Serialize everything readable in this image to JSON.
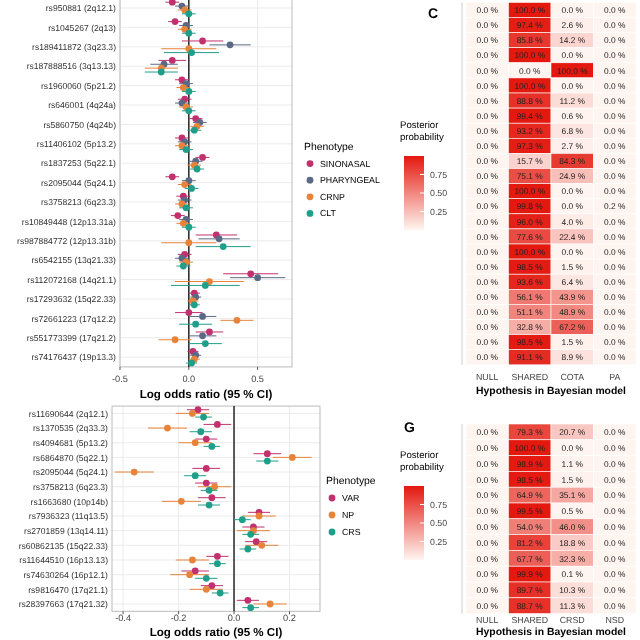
{
  "chart_data": [
    {
      "type": "scatter",
      "orientation": "horizontal",
      "xlabel": "Log odds ratio (95 % CI)",
      "legend": "right",
      "legend_title": "Phenotype",
      "marker": "circle",
      "grid": true,
      "categories": [
        "rs950881 (2q12.1)",
        "rs1045267 (2q13)",
        "rs189411872 (3q23.3)",
        "rs187888516 (3q13.13)",
        "rs1960060 (5p21.2)",
        "rs646001 (4q24a)",
        "rs5860750 (4q24b)",
        "rs11406102 (5p13.2)",
        "rs1837253 (5q22.1)",
        "rs2095044 (5q24.1)",
        "rs3758213 (6q23.3)",
        "rs10849448 (12p13.31a)",
        "rs987884772 (12p13.31b)",
        "rs6542155 (13q21.33)",
        "rs112072168 (14q21.1)",
        "rs17293632 (15q22.33)",
        "rs72661223 (17q12.2)",
        "rs551773399 (17q21.2)",
        "rs74176437 (19p13.3)"
      ],
      "xlim": [
        -0.5,
        0.75
      ],
      "xticks": [
        -0.5,
        {
          "value": 0,
          "label": "0.0"
        },
        0.5
      ],
      "ref_lines": [
        {
          "axis": "x",
          "value": 0
        }
      ],
      "series": [
        {
          "name": "SINONASAL",
          "color": "#c2306e",
          "values": [
            -0.12,
            -0.1,
            0.1,
            -0.12,
            -0.05,
            -0.03,
            0.05,
            -0.05,
            0.1,
            -0.12,
            -0.04,
            -0.08,
            0.2,
            -0.03,
            0.45,
            0.04,
            0.0,
            0.15,
            0.03
          ],
          "errors": [
            0.05,
            0.05,
            0.15,
            0.1,
            0.05,
            0.05,
            0.05,
            0.05,
            0.05,
            0.05,
            0.05,
            0.05,
            0.15,
            0.05,
            0.2,
            0.04,
            0.1,
            0.1,
            0.04
          ]
        },
        {
          "name": "PHARYNGEAL",
          "color": "#5a6a86",
          "values": [
            -0.05,
            -0.02,
            0.3,
            -0.18,
            -0.02,
            -0.05,
            0.08,
            -0.03,
            0.05,
            0.0,
            -0.03,
            -0.02,
            0.22,
            -0.05,
            0.5,
            0.05,
            0.1,
            0.1,
            0.05
          ],
          "errors": [
            0.05,
            0.05,
            0.15,
            0.1,
            0.05,
            0.05,
            0.05,
            0.05,
            0.05,
            0.05,
            0.05,
            0.05,
            0.15,
            0.05,
            0.2,
            0.04,
            0.1,
            0.1,
            0.04
          ]
        },
        {
          "name": "CRNP",
          "color": "#e8843a",
          "values": [
            -0.03,
            -0.03,
            0.0,
            -0.2,
            -0.04,
            -0.02,
            0.06,
            -0.05,
            0.04,
            -0.03,
            -0.05,
            -0.04,
            0.0,
            -0.02,
            0.15,
            0.03,
            0.35,
            -0.1,
            0.04
          ],
          "errors": [
            0.05,
            0.05,
            0.2,
            0.12,
            0.05,
            0.05,
            0.05,
            0.05,
            0.05,
            0.05,
            0.05,
            0.05,
            0.2,
            0.05,
            0.25,
            0.04,
            0.12,
            0.12,
            0.04
          ]
        },
        {
          "name": "CLT",
          "color": "#1f9e89",
          "values": [
            0.0,
            0.0,
            0.02,
            -0.2,
            0.0,
            0.0,
            0.04,
            -0.02,
            0.06,
            0.02,
            -0.02,
            0.0,
            0.25,
            -0.04,
            0.12,
            0.04,
            0.05,
            0.12,
            0.02
          ],
          "errors": [
            0.05,
            0.05,
            0.2,
            0.12,
            0.05,
            0.05,
            0.05,
            0.05,
            0.05,
            0.05,
            0.05,
            0.05,
            0.2,
            0.05,
            0.25,
            0.04,
            0.12,
            0.12,
            0.04
          ]
        }
      ]
    },
    {
      "type": "heatmap",
      "title": "C",
      "xlabel": "Hypothesis in Bayesian model",
      "clabel": "Posterior probability",
      "categories": [
        "NULL",
        "SHARED",
        "COTA",
        "PA"
      ],
      "y_categories": [
        null,
        null,
        null,
        null,
        null,
        null,
        null,
        null,
        null,
        null,
        null,
        null,
        null,
        null,
        null,
        null,
        null,
        null,
        null,
        null,
        null,
        null,
        null,
        null
      ],
      "clim": [
        0,
        1
      ],
      "cticks": [
        {
          "value": 0.25,
          "label": "0.25"
        },
        {
          "value": 0.5,
          "label": "0.50"
        },
        {
          "value": 0.75,
          "label": "0.75"
        }
      ],
      "cells": [
        [
          0,
          1,
          0,
          0
        ],
        [
          0,
          0.974,
          0.026,
          0
        ],
        [
          0,
          0.858,
          0.142,
          0
        ],
        [
          0,
          1,
          0,
          0
        ],
        [
          0,
          0,
          1,
          0
        ],
        [
          0,
          1,
          0,
          0
        ],
        [
          0,
          0.888,
          0.112,
          0
        ],
        [
          0,
          0.994,
          0.006,
          0
        ],
        [
          0,
          0.932,
          0.068,
          0
        ],
        [
          0,
          0.973,
          0.027,
          0
        ],
        [
          0,
          0.157,
          0.843,
          0
        ],
        [
          0,
          0.751,
          0.249,
          0
        ],
        [
          0,
          1,
          0,
          0
        ],
        [
          0,
          0.998,
          0,
          0.002
        ],
        [
          0,
          0.96,
          0.04,
          0
        ],
        [
          0,
          0.776,
          0.224,
          0
        ],
        [
          0,
          1,
          0,
          0
        ],
        [
          0,
          0.985,
          0.015,
          0
        ],
        [
          0,
          0.936,
          0.064,
          0
        ],
        [
          0,
          0.561,
          0.439,
          0
        ],
        [
          0,
          0.511,
          0.489,
          0
        ],
        [
          0,
          0.328,
          0.672,
          0
        ],
        [
          0,
          0.985,
          0.015,
          0
        ],
        [
          0,
          0.911,
          0.089,
          0
        ]
      ],
      "cell_labels": [
        [
          "0.0 %",
          "100.0 %",
          "0.0 %",
          "0.0 %"
        ],
        [
          "0.0 %",
          "97.4 %",
          "2.6 %",
          "0.0 %"
        ],
        [
          "0.0 %",
          "85.8 %",
          "14.2 %",
          "0.0 %"
        ],
        [
          "0.0 %",
          "100.0 %",
          "0.0 %",
          "0.0 %"
        ],
        [
          "0.0 %",
          "0.0 %",
          "100.0 %",
          "0.0 %"
        ],
        [
          "0.0 %",
          "100.0 %",
          "0.0 %",
          "0.0 %"
        ],
        [
          "0.0 %",
          "88.8 %",
          "11.2 %",
          "0.0 %"
        ],
        [
          "0.0 %",
          "99.4 %",
          "0.6 %",
          "0.0 %"
        ],
        [
          "0.0 %",
          "93.2 %",
          "6.8 %",
          "0.0 %"
        ],
        [
          "0.0 %",
          "97.3 %",
          "2.7 %",
          "0.0 %"
        ],
        [
          "0.0 %",
          "15.7 %",
          "84.3 %",
          "0.0 %"
        ],
        [
          "0.0 %",
          "75.1 %",
          "24.9 %",
          "0.0 %"
        ],
        [
          "0.0 %",
          "100.0 %",
          "0.0 %",
          "0.0 %"
        ],
        [
          "0.0 %",
          "99.8 %",
          "0.0 %",
          "0.2 %"
        ],
        [
          "0.0 %",
          "96.0 %",
          "4.0 %",
          "0.0 %"
        ],
        [
          "0.0 %",
          "77.6 %",
          "22.4 %",
          "0.0 %"
        ],
        [
          "0.0 %",
          "100.0 %",
          "0.0 %",
          "0.0 %"
        ],
        [
          "0.0 %",
          "98.5 %",
          "1.5 %",
          "0.0 %"
        ],
        [
          "0.0 %",
          "93.6 %",
          "6.4 %",
          "0.0 %"
        ],
        [
          "0.0 %",
          "56.1 %",
          "43.9 %",
          "0.0 %"
        ],
        [
          "0.0 %",
          "51.1 %",
          "48.9 %",
          "0.0 %"
        ],
        [
          "0.0 %",
          "32.8 %",
          "67.2 %",
          "0.0 %"
        ],
        [
          "0.0 %",
          "98.5 %",
          "1.5 %",
          "0.0 %"
        ],
        [
          "0.0 %",
          "91.1 %",
          "8.9 %",
          "0.0 %"
        ]
      ]
    },
    {
      "type": "scatter",
      "orientation": "horizontal",
      "xlabel": "Log odds ratio (95 % CI)",
      "legend": "right",
      "legend_title": "Phenotype",
      "marker": "circle",
      "grid": true,
      "categories": [
        "rs11690644 (2q12.1)",
        "rs1370535 (2q33.3)",
        "rs4094681 (5p13.2)",
        "rs6864870 (5q22.1)",
        "rs2095044 (5q24.1)",
        "rs3758213 (6q23.3)",
        "rs1663680 (10p14b)",
        "rs7936323 (11q13.5)",
        "rs2701859 (13q14.11)",
        "rs60862135 (15q22.33)",
        "rs11644510 (16p13.13)",
        "rs74630264 (16p12.1)",
        "rs9816470 (17q21.1)",
        "rs28397663 (17q21.32)"
      ],
      "xlim": [
        -0.44,
        0.31
      ],
      "xticks": [
        -0.4,
        -0.2,
        {
          "value": 0,
          "label": "0.0"
        },
        0.2
      ],
      "ref_lines": [
        {
          "axis": "x",
          "value": 0
        }
      ],
      "series": [
        {
          "name": "VAR",
          "color": "#c2306e",
          "values": [
            -0.13,
            -0.06,
            -0.1,
            0.12,
            -0.1,
            -0.1,
            -0.08,
            0.09,
            0.07,
            0.08,
            -0.06,
            -0.14,
            -0.08,
            0.05
          ],
          "errors": [
            0.04,
            0.05,
            0.04,
            0.05,
            0.05,
            0.04,
            0.05,
            0.04,
            0.04,
            0.04,
            0.04,
            0.05,
            0.04,
            0.04
          ]
        },
        {
          "name": "NP",
          "color": "#e8843a",
          "values": [
            -0.15,
            -0.24,
            -0.14,
            0.21,
            -0.36,
            -0.07,
            -0.19,
            0.09,
            0.07,
            0.1,
            -0.15,
            -0.16,
            -0.1,
            0.13
          ],
          "errors": [
            0.06,
            0.07,
            0.06,
            0.07,
            0.07,
            0.06,
            0.07,
            0.06,
            0.06,
            0.06,
            0.06,
            0.07,
            0.06,
            0.06
          ]
        },
        {
          "name": "CRS",
          "color": "#1f9e89",
          "values": [
            -0.11,
            -0.12,
            -0.08,
            0.12,
            -0.14,
            -0.09,
            -0.09,
            0.03,
            0.06,
            0.05,
            -0.06,
            -0.1,
            -0.05,
            0.06
          ],
          "errors": [
            0.03,
            0.04,
            0.03,
            0.04,
            0.04,
            0.03,
            0.04,
            0.03,
            0.03,
            0.03,
            0.03,
            0.04,
            0.03,
            0.03
          ]
        }
      ]
    },
    {
      "type": "heatmap",
      "title": "G",
      "xlabel": "Hypothesis in Bayesian model",
      "clabel": "Posterior probability",
      "categories": [
        "NULL",
        "SHARED",
        "CRSD",
        "NSD"
      ],
      "y_categories": [
        null,
        null,
        null,
        null,
        null,
        null,
        null,
        null,
        null,
        null,
        null,
        null
      ],
      "clim": [
        0,
        1
      ],
      "cticks": [
        {
          "value": 0.25,
          "label": "0.25"
        },
        {
          "value": 0.5,
          "label": "0.50"
        },
        {
          "value": 0.75,
          "label": "0.75"
        }
      ],
      "cells": [
        [
          0,
          0.793,
          0.207,
          0
        ],
        [
          0,
          1,
          0,
          0
        ],
        [
          0,
          0.989,
          0.011,
          0
        ],
        [
          0,
          0.985,
          0.015,
          0
        ],
        [
          0,
          0.649,
          0.351,
          0
        ],
        [
          0,
          0.995,
          0.005,
          0
        ],
        [
          0,
          0.54,
          0.46,
          0
        ],
        [
          0,
          0.812,
          0.188,
          0
        ],
        [
          0,
          0.677,
          0.323,
          0
        ],
        [
          0,
          0.999,
          0.001,
          0
        ],
        [
          0,
          0.897,
          0.103,
          0
        ],
        [
          0,
          0.887,
          0.113,
          0
        ]
      ],
      "cell_labels": [
        [
          "0.0 %",
          "79.3 %",
          "20.7 %",
          "0.0 %"
        ],
        [
          "0.0 %",
          "100.0 %",
          "0.0 %",
          "0.0 %"
        ],
        [
          "0.0 %",
          "98.9 %",
          "1.1 %",
          "0.0 %"
        ],
        [
          "0.0 %",
          "98.5 %",
          "1.5 %",
          "0.0 %"
        ],
        [
          "0.0 %",
          "64.9 %",
          "35.1 %",
          "0.0 %"
        ],
        [
          "0.0 %",
          "99.5 %",
          "0.5 %",
          "0.0 %"
        ],
        [
          "0.0 %",
          "54.0 %",
          "46.0 %",
          "0.0 %"
        ],
        [
          "0.0 %",
          "81.2 %",
          "18.8 %",
          "0.0 %"
        ],
        [
          "0.0 %",
          "67.7 %",
          "32.3 %",
          "0.0 %"
        ],
        [
          "0.0 %",
          "99.9 %",
          "0.1 %",
          "0.0 %"
        ],
        [
          "0.0 %",
          "89.7 %",
          "10.3 %",
          "0.0 %"
        ],
        [
          "0.0 %",
          "88.7 %",
          "11.3 %",
          "0.0 %"
        ]
      ]
    }
  ]
}
